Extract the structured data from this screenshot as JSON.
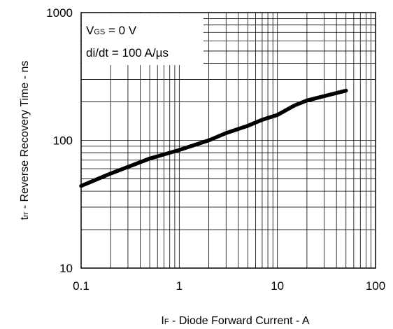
{
  "chart_data": {
    "type": "line",
    "xscale": "log",
    "yscale": "log",
    "xlim": [
      0.1,
      100
    ],
    "ylim": [
      10,
      1000
    ],
    "grid": true,
    "xlabel": {
      "main": "I",
      "sub": "F",
      "rest": " - Diode Forward Current - A"
    },
    "ylabel": {
      "main": "t",
      "sub": "rr",
      "rest": " - Reverse Recovery Time - ns"
    },
    "x_tick_labels": [
      "0.1",
      "1",
      "10",
      "100"
    ],
    "y_tick_labels": [
      "10",
      "100",
      "1000"
    ],
    "legend": {
      "placement": "top-left",
      "line1": {
        "main": "V",
        "sub": "GS",
        "rest": " = 0 V"
      },
      "line2": "di/dt = 100 A/µs"
    },
    "series": [
      {
        "x": [
          0.1,
          0.2,
          0.3,
          0.5,
          1,
          2,
          3,
          5,
          7,
          10,
          15,
          20,
          30,
          50
        ],
        "y": [
          44,
          55,
          62,
          72,
          84,
          100,
          114,
          130,
          145,
          158,
          188,
          205,
          222,
          245
        ]
      }
    ]
  }
}
